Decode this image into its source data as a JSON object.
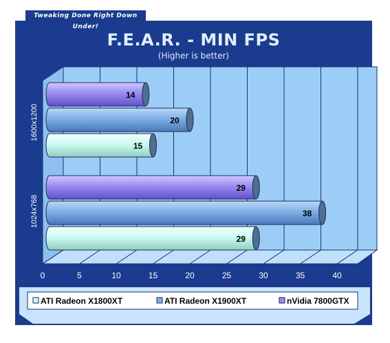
{
  "banner": {
    "tagline": "Tweaking Done Right Down Under!"
  },
  "chart_data": {
    "type": "bar",
    "orientation": "horizontal",
    "title": "F.E.A.R. - MIN FPS",
    "subtitle": "(Higher is better)",
    "categories": [
      "1600x1200",
      "1024x768"
    ],
    "series": [
      {
        "name": "ATI Radeon X1800XT",
        "color": "#ccfbf1",
        "values": [
          15,
          29
        ]
      },
      {
        "name": "ATI Radeon X1900XT",
        "color": "#7fb0e6",
        "values": [
          20,
          38
        ]
      },
      {
        "name": "nVidia 7800GTX",
        "color": "#9a8cf2",
        "values": [
          14,
          29
        ]
      }
    ],
    "xlim": [
      0,
      40
    ],
    "xticks": [
      0,
      5,
      10,
      15,
      20,
      25,
      30,
      35,
      40
    ],
    "grid": true,
    "legend_position": "bottom",
    "colors": {
      "frame": "#1b3b8e",
      "plot_wall": "#9ccdf6",
      "plot_floor": "#bfe0fb",
      "legend_bg": "#c9e3fb",
      "grid": "#17306f"
    }
  }
}
